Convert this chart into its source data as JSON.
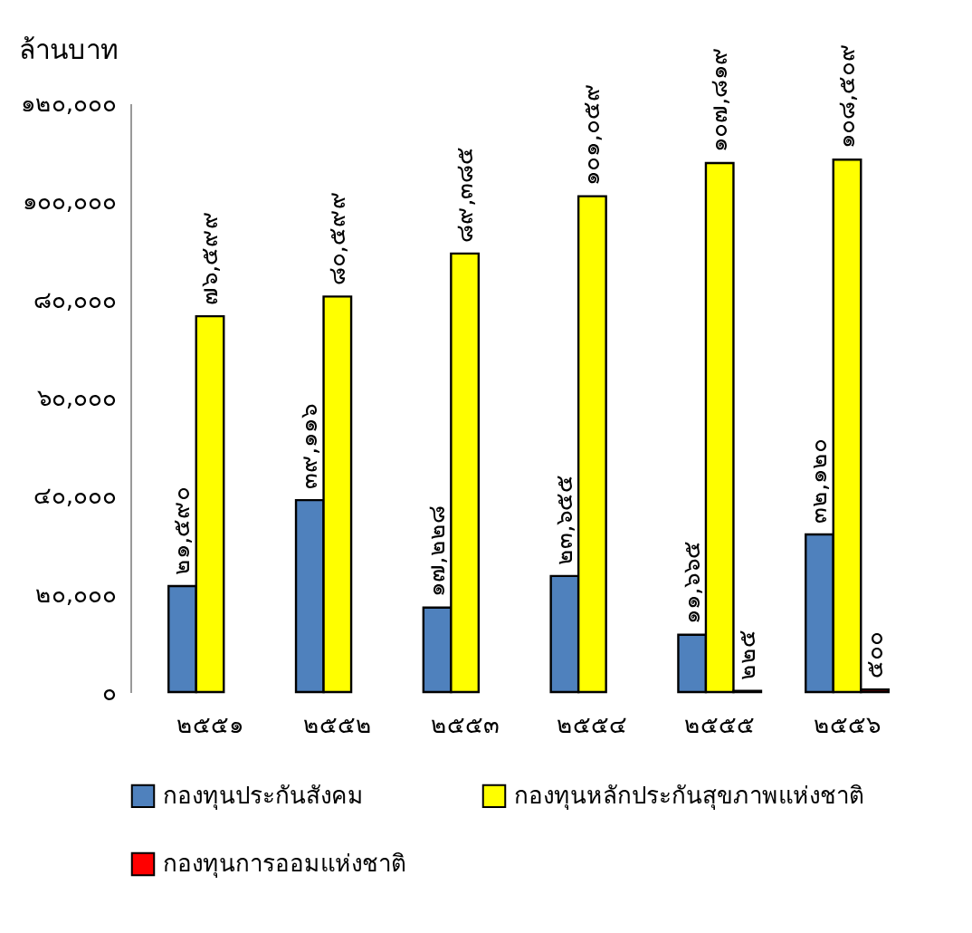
{
  "chart_data": {
    "type": "bar",
    "ylabel": "ล้านบาท",
    "categories": [
      "๒๕๕๑",
      "๒๕๕๒",
      "๒๕๕๓",
      "๒๕๕๔",
      "๒๕๕๕",
      "๒๕๕๖"
    ],
    "series": [
      {
        "name": "กองทุนประกันสังคม",
        "color": "#4f81bd",
        "values": [
          21590,
          39116,
          17228,
          23655,
          11665,
          32120
        ],
        "value_labels": [
          "๒๑,๕๙๐",
          "๓๙,๑๑๖",
          "๑๗,๒๒๘",
          "๒๓,๖๕๕",
          "๑๑,๖๖๕",
          "๓๒,๑๒๐"
        ]
      },
      {
        "name": "กองทุนหลักประกันสุขภาพแห่งชาติ",
        "color": "#ffff00",
        "values": [
          76599,
          80599,
          89385,
          101059,
          107819,
          108509
        ],
        "value_labels": [
          "๗๖,๕๙๙",
          "๘๐,๕๙๙",
          "๘๙,๓๘๕",
          "๑๐๑,๐๕๙",
          "๑๐๗,๘๑๙",
          "๑๐๘,๕๐๙"
        ]
      },
      {
        "name": "กองทุนการออมแห่งชาติ",
        "color": "#ff0000",
        "values": [
          null,
          null,
          null,
          null,
          225,
          500
        ],
        "value_labels": [
          null,
          null,
          null,
          null,
          "๒๒๕",
          "๕๐๐"
        ]
      }
    ],
    "ylim": [
      0,
      120000
    ],
    "yticks": [
      {
        "value": 0,
        "label": "๐"
      },
      {
        "value": 20000,
        "label": "๒๐,๐๐๐"
      },
      {
        "value": 40000,
        "label": "๔๐,๐๐๐"
      },
      {
        "value": 60000,
        "label": "๖๐,๐๐๐"
      },
      {
        "value": 80000,
        "label": "๘๐,๐๐๐"
      },
      {
        "value": 100000,
        "label": "๑๐๐,๐๐๐"
      },
      {
        "value": 120000,
        "label": "๑๒๐,๐๐๐"
      }
    ],
    "grid": false,
    "legend": "bottom"
  }
}
